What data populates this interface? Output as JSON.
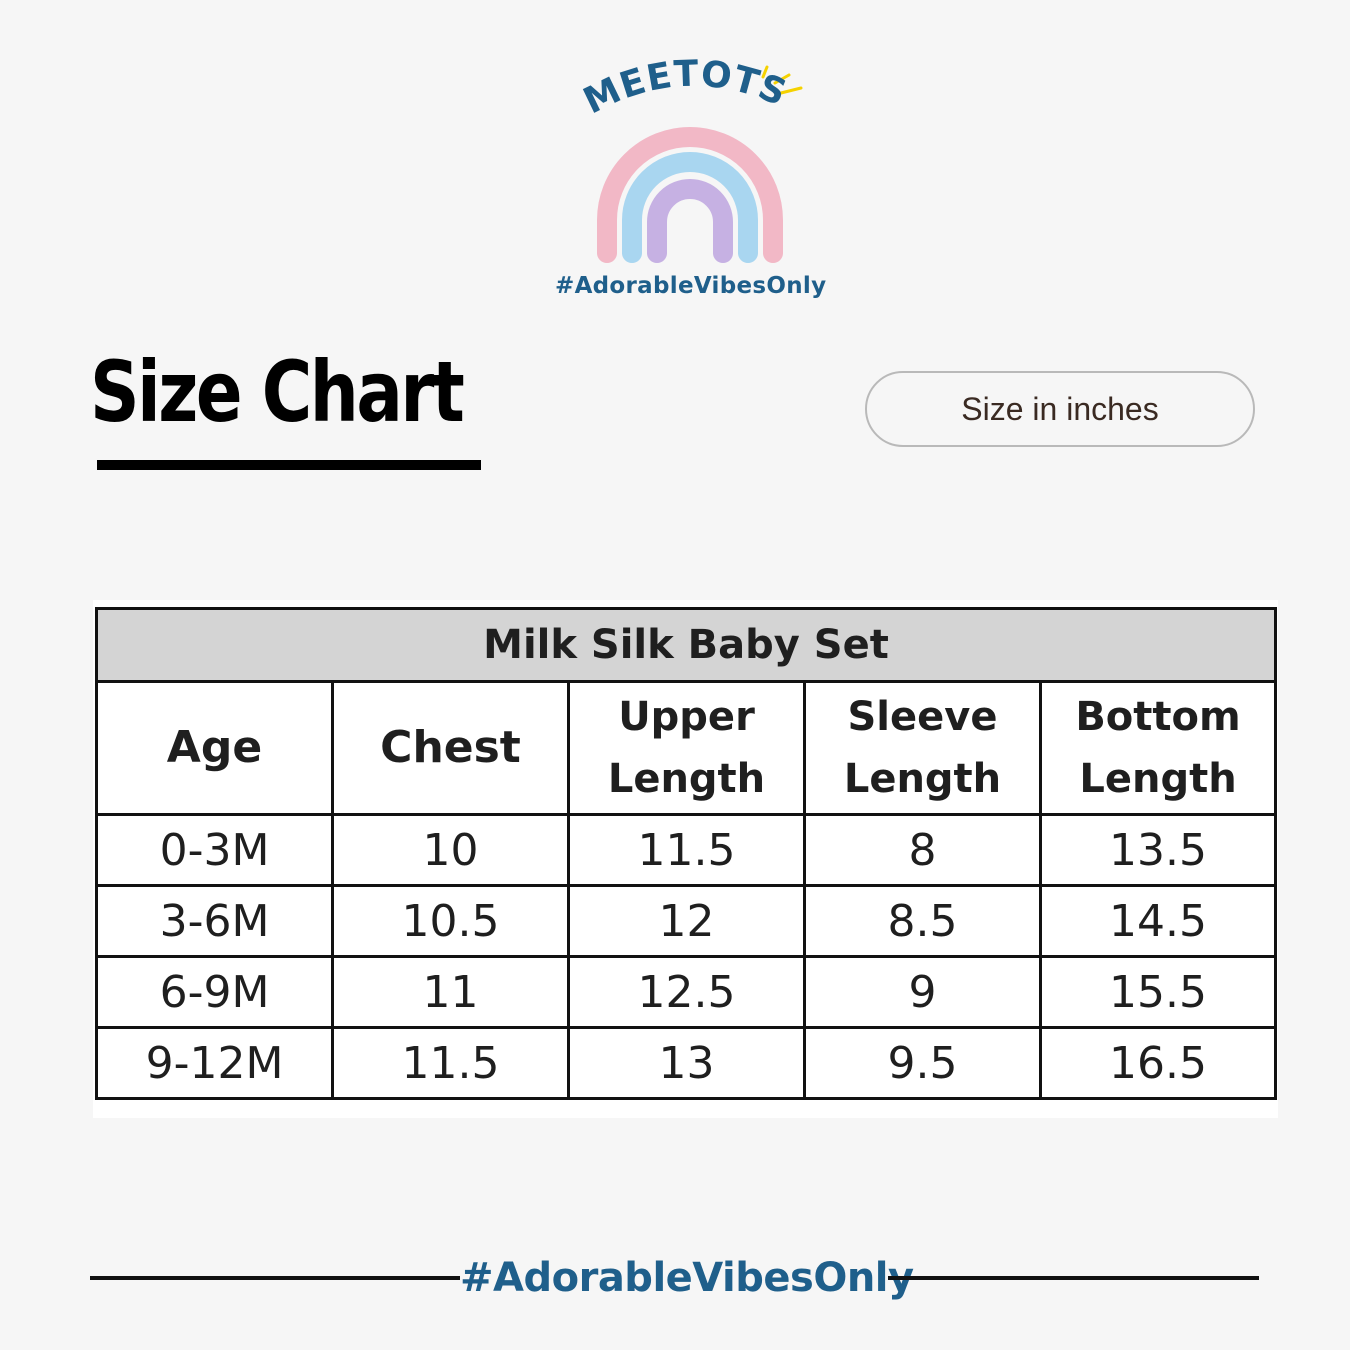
{
  "brand": {
    "name": "MEETOTS",
    "tagline": "#AdorableVibesOnly",
    "colors": {
      "text": "#1f5f8b",
      "rainbow_outer": "#f2b8c6",
      "rainbow_middle": "#a9d6f0",
      "rainbow_inner": "#c6b1e3",
      "sparkle": "#f5d200"
    }
  },
  "header": {
    "title": "Size Chart",
    "unit_label": "Size in inches"
  },
  "table": {
    "caption": "Milk Silk Baby Set",
    "columns": [
      {
        "line1": "Age",
        "line2": ""
      },
      {
        "line1": "Chest",
        "line2": ""
      },
      {
        "line1": "Upper",
        "line2": "Length"
      },
      {
        "line1": "Sleeve",
        "line2": "Length"
      },
      {
        "line1": "Bottom",
        "line2": "Length"
      }
    ],
    "rows": [
      [
        "0-3M",
        "10",
        "11.5",
        "8",
        "13.5"
      ],
      [
        "3-6M",
        "10.5",
        "12",
        "8.5",
        "14.5"
      ],
      [
        "6-9M",
        "11",
        "12.5",
        "9",
        "15.5"
      ],
      [
        "9-12M",
        "11.5",
        "13",
        "9.5",
        "16.5"
      ]
    ]
  },
  "footer": {
    "tagline": "#AdorableVibesOnly"
  }
}
